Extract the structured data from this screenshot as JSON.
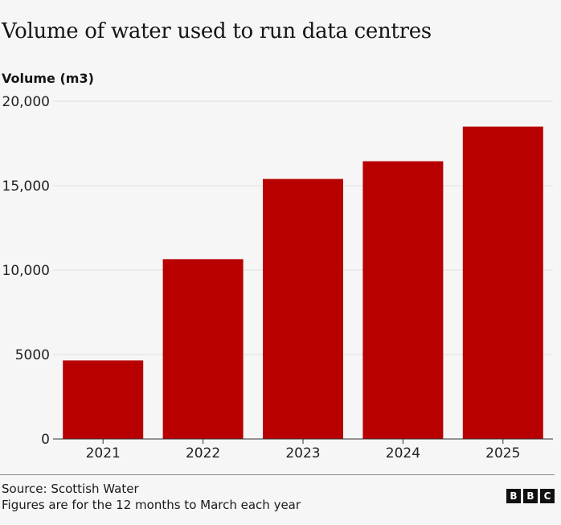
{
  "chart_data": {
    "type": "bar",
    "title": "Volume of water used to run data centres",
    "ylabel": "Volume (m3)",
    "xlabel": "",
    "categories": [
      "2021",
      "2022",
      "2023",
      "2024",
      "2025"
    ],
    "values": [
      4650,
      10650,
      15400,
      16450,
      18500
    ],
    "ylim": [
      0,
      20000
    ],
    "yticks": [
      0,
      5000,
      10000,
      15000,
      20000
    ],
    "ytick_labels": [
      "0",
      "5000",
      "10,000",
      "15,000",
      "20,000"
    ],
    "grid": true,
    "legend": "none",
    "bar_color": "#b80000"
  },
  "footer": {
    "source": "Source: Scottish Water",
    "note": "Figures are for the 12 months to March each year",
    "logo": [
      "B",
      "B",
      "C"
    ]
  }
}
